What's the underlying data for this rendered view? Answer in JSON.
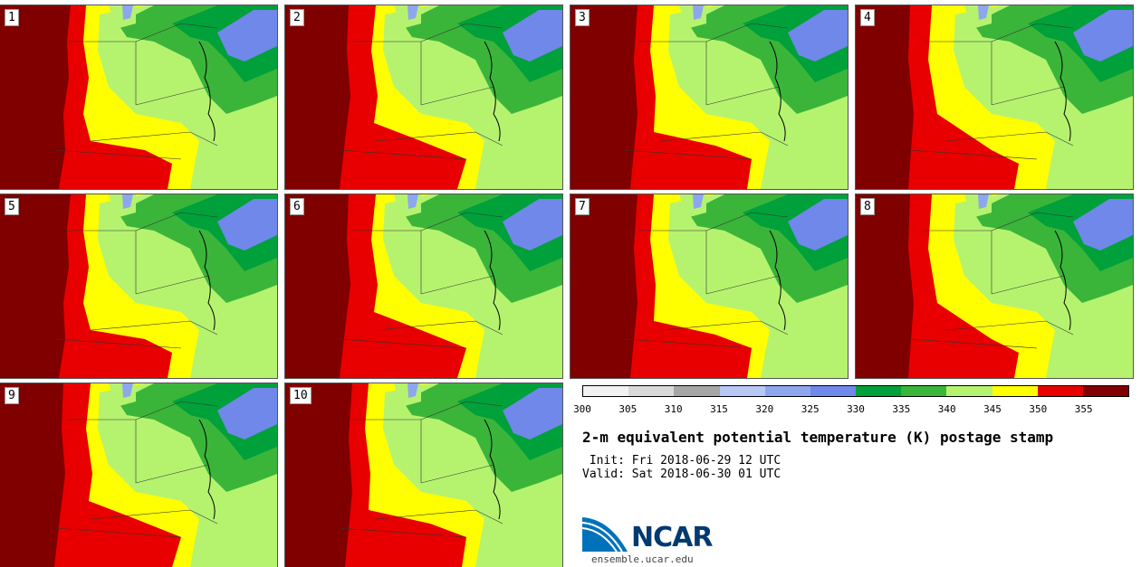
{
  "panels": [
    {
      "label": "1",
      "variant": 0
    },
    {
      "label": "2",
      "variant": 1
    },
    {
      "label": "3",
      "variant": 2
    },
    {
      "label": "4",
      "variant": 3
    },
    {
      "label": "5",
      "variant": 0
    },
    {
      "label": "6",
      "variant": 1
    },
    {
      "label": "7",
      "variant": 2
    },
    {
      "label": "8",
      "variant": 3
    },
    {
      "label": "9",
      "variant": 1
    },
    {
      "label": "10",
      "variant": 2
    }
  ],
  "colorbar": {
    "ticks": [
      "300",
      "305",
      "310",
      "315",
      "320",
      "325",
      "330",
      "335",
      "340",
      "345",
      "350",
      "355"
    ],
    "colors": [
      "#f2f2f2",
      "#d9d9d9",
      "#a6a6a6",
      "#b8c8f5",
      "#8ea6ee",
      "#6f88ea",
      "#00a03a",
      "#3ab53a",
      "#b5f36f",
      "#ffff00",
      "#e80000",
      "#800000"
    ]
  },
  "title": "2-m equivalent potential temperature (K) postage stamp",
  "init_text": " Init: Fri 2018-06-29 12 UTC",
  "valid_text": "Valid: Sat 2018-06-30 01 UTC",
  "logo": {
    "text": "NCAR"
  },
  "website": "ensemble.ucar.edu"
}
